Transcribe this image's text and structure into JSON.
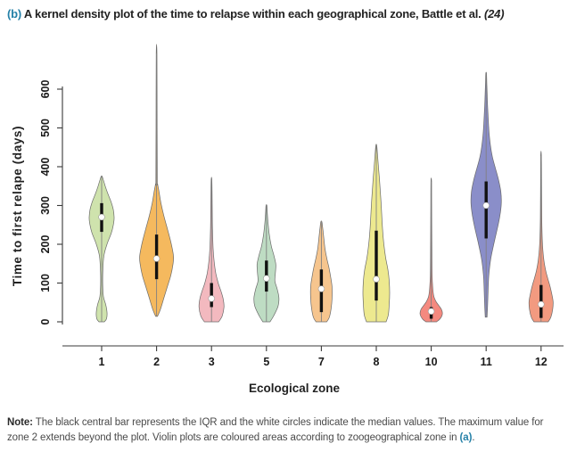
{
  "title": {
    "prefix": "(b)",
    "text": " A kernel density plot of the time to relapse within each geographical zone, Battle et al. ",
    "citation": "(24)"
  },
  "note": {
    "label": "Note:",
    "text_before": " The black central bar represents the IQR and the white circles indicate the median values. The maximum value for zone 2 extends beyond the plot. Violin plots are coloured areas according to zoogeographical zone in ",
    "link": "(a)",
    "text_after": "."
  },
  "chart_data": {
    "type": "violin",
    "xlabel": "Ecological zone",
    "ylabel": "Time to first relape (days)",
    "categories": [
      "1",
      "2",
      "3",
      "5",
      "7",
      "8",
      "10",
      "11",
      "12"
    ],
    "y_ticks": [
      0,
      100,
      200,
      300,
      400,
      500,
      600
    ],
    "ylim": [
      0,
      600
    ],
    "grid": false,
    "legend": "none",
    "marker_colors": {
      "iqr_bar": "#111111",
      "median_dot": "#ffffff",
      "center_line": "#808080",
      "outline": "#6b6b6b"
    },
    "series": [
      {
        "zone": "1",
        "color": "#cfe3ad",
        "median": 270,
        "iqr": [
          232,
          306
        ],
        "range": [
          0,
          375
        ],
        "extends_beyond_plot": false,
        "profile": [
          [
            0,
            3
          ],
          [
            8,
            5.5
          ],
          [
            25,
            6
          ],
          [
            45,
            4.5
          ],
          [
            65,
            2
          ],
          [
            95,
            1.2
          ],
          [
            130,
            1.3
          ],
          [
            170,
            2.5
          ],
          [
            200,
            6
          ],
          [
            230,
            11
          ],
          [
            255,
            13.5
          ],
          [
            270,
            14
          ],
          [
            290,
            13
          ],
          [
            310,
            10.5
          ],
          [
            330,
            7
          ],
          [
            350,
            4
          ],
          [
            365,
            2
          ],
          [
            375,
            0.6
          ]
        ]
      },
      {
        "zone": "2",
        "color": "#f5b95e",
        "median": 163,
        "iqr": [
          110,
          225
        ],
        "range": [
          14,
          692
        ],
        "extends_beyond_plot": true,
        "profile": [
          [
            14,
            1
          ],
          [
            30,
            4
          ],
          [
            60,
            8
          ],
          [
            90,
            12
          ],
          [
            120,
            16
          ],
          [
            150,
            18.5
          ],
          [
            168,
            19
          ],
          [
            190,
            17.5
          ],
          [
            215,
            15
          ],
          [
            245,
            11.5
          ],
          [
            275,
            8
          ],
          [
            305,
            5
          ],
          [
            335,
            2.8
          ],
          [
            355,
            1.2
          ],
          [
            365,
            0.8
          ],
          [
            500,
            0.6
          ],
          [
            692,
            0.4
          ]
        ]
      },
      {
        "zone": "3",
        "color": "#f3b9bf",
        "median": 60,
        "iqr": [
          38,
          100
        ],
        "range": [
          0,
          365
        ],
        "extends_beyond_plot": false,
        "profile": [
          [
            0,
            8
          ],
          [
            15,
            12
          ],
          [
            38,
            14
          ],
          [
            60,
            13
          ],
          [
            80,
            10.5
          ],
          [
            100,
            7.5
          ],
          [
            125,
            4.8
          ],
          [
            155,
            3
          ],
          [
            190,
            1.8
          ],
          [
            240,
            1.1
          ],
          [
            300,
            0.8
          ],
          [
            365,
            0.4
          ]
        ]
      },
      {
        "zone": "5",
        "color": "#bedcc3",
        "median": 112,
        "iqr": [
          78,
          158
        ],
        "range": [
          0,
          300
        ],
        "extends_beyond_plot": false,
        "profile": [
          [
            0,
            4
          ],
          [
            15,
            8
          ],
          [
            40,
            13
          ],
          [
            62,
            14
          ],
          [
            85,
            12
          ],
          [
            105,
            9.5
          ],
          [
            125,
            10
          ],
          [
            148,
            10.5
          ],
          [
            170,
            8.5
          ],
          [
            195,
            5.5
          ],
          [
            225,
            3.2
          ],
          [
            255,
            1.8
          ],
          [
            280,
            1
          ],
          [
            300,
            0.5
          ]
        ]
      },
      {
        "zone": "7",
        "color": "#f6c58e",
        "median": 85,
        "iqr": [
          25,
          135
        ],
        "range": [
          0,
          258
        ],
        "extends_beyond_plot": false,
        "profile": [
          [
            0,
            6
          ],
          [
            12,
            9
          ],
          [
            35,
            11
          ],
          [
            60,
            12
          ],
          [
            90,
            12
          ],
          [
            115,
            10.5
          ],
          [
            140,
            8.5
          ],
          [
            165,
            6
          ],
          [
            190,
            4
          ],
          [
            215,
            2.8
          ],
          [
            240,
            1.6
          ],
          [
            258,
            0.6
          ]
        ]
      },
      {
        "zone": "8",
        "color": "#ede98f",
        "median": 110,
        "iqr": [
          55,
          235
        ],
        "range": [
          0,
          455
        ],
        "extends_beyond_plot": false,
        "profile": [
          [
            0,
            11
          ],
          [
            18,
            13.5
          ],
          [
            45,
            14.5
          ],
          [
            75,
            15
          ],
          [
            105,
            14.5
          ],
          [
            135,
            13
          ],
          [
            165,
            10.5
          ],
          [
            200,
            8.5
          ],
          [
            240,
            7
          ],
          [
            280,
            6
          ],
          [
            320,
            5
          ],
          [
            360,
            3.8
          ],
          [
            400,
            2.4
          ],
          [
            430,
            1.4
          ],
          [
            455,
            0.5
          ]
        ]
      },
      {
        "zone": "10",
        "color": "#f4897f",
        "median": 27,
        "iqr": [
          8,
          38
        ],
        "range": [
          0,
          362
        ],
        "extends_beyond_plot": false,
        "profile": [
          [
            0,
            6
          ],
          [
            8,
            10
          ],
          [
            20,
            12.5
          ],
          [
            32,
            11.5
          ],
          [
            42,
            8.5
          ],
          [
            52,
            5.5
          ],
          [
            65,
            3
          ],
          [
            85,
            1.8
          ],
          [
            120,
            1
          ],
          [
            200,
            0.7
          ],
          [
            290,
            0.5
          ],
          [
            362,
            0.35
          ]
        ]
      },
      {
        "zone": "11",
        "color": "#8a8ec9",
        "median": 300,
        "iqr": [
          215,
          362
        ],
        "range": [
          12,
          640
        ],
        "extends_beyond_plot": false,
        "profile": [
          [
            12,
            1
          ],
          [
            40,
            1.6
          ],
          [
            80,
            2.2
          ],
          [
            120,
            3
          ],
          [
            160,
            5
          ],
          [
            200,
            8.5
          ],
          [
            240,
            12.5
          ],
          [
            275,
            15.5
          ],
          [
            305,
            17
          ],
          [
            335,
            16.5
          ],
          [
            365,
            14
          ],
          [
            395,
            10.5
          ],
          [
            425,
            7
          ],
          [
            455,
            4.8
          ],
          [
            490,
            3.2
          ],
          [
            530,
            2.2
          ],
          [
            570,
            1.4
          ],
          [
            610,
            0.8
          ],
          [
            640,
            0.4
          ]
        ]
      },
      {
        "zone": "12",
        "color": "#f29a80",
        "median": 45,
        "iqr": [
          10,
          95
        ],
        "range": [
          0,
          428
        ],
        "extends_beyond_plot": false,
        "profile": [
          [
            0,
            8
          ],
          [
            12,
            11
          ],
          [
            32,
            13
          ],
          [
            52,
            13.5
          ],
          [
            72,
            12
          ],
          [
            92,
            10
          ],
          [
            112,
            7.5
          ],
          [
            132,
            5.2
          ],
          [
            158,
            3.2
          ],
          [
            185,
            2
          ],
          [
            215,
            1.3
          ],
          [
            265,
            0.8
          ],
          [
            330,
            0.6
          ],
          [
            428,
            0.35
          ]
        ]
      }
    ]
  }
}
